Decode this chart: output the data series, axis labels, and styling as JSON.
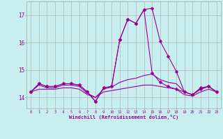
{
  "xlabel": "Windchill (Refroidissement éolien,°C)",
  "background_color": "#c8eef0",
  "grid_color": "#aaaaaa",
  "line_color": "#990099",
  "x": [
    0,
    1,
    2,
    3,
    4,
    5,
    6,
    7,
    8,
    9,
    10,
    11,
    12,
    13,
    14,
    15,
    16,
    17,
    18,
    19,
    20,
    21,
    22,
    23
  ],
  "series1": [
    14.2,
    14.5,
    14.4,
    14.4,
    14.5,
    14.5,
    14.45,
    14.2,
    13.85,
    14.35,
    14.4,
    16.1,
    16.85,
    16.7,
    17.2,
    17.25,
    16.05,
    15.5,
    14.95,
    14.2,
    14.1,
    14.35,
    14.4,
    14.2
  ],
  "series2": [
    14.2,
    14.5,
    14.4,
    14.4,
    14.5,
    14.5,
    14.45,
    14.2,
    13.85,
    14.35,
    14.4,
    16.1,
    16.85,
    16.7,
    17.2,
    14.9,
    14.55,
    14.4,
    14.3,
    14.2,
    14.1,
    14.3,
    14.4,
    14.2
  ],
  "series3": [
    14.2,
    14.45,
    14.35,
    14.35,
    14.45,
    14.45,
    14.4,
    14.15,
    14.0,
    14.3,
    14.38,
    14.55,
    14.65,
    14.7,
    14.8,
    14.85,
    14.65,
    14.55,
    14.5,
    14.2,
    14.1,
    14.3,
    14.4,
    14.2
  ],
  "series4": [
    14.2,
    14.3,
    14.3,
    14.3,
    14.35,
    14.35,
    14.3,
    14.1,
    14.0,
    14.2,
    14.25,
    14.3,
    14.35,
    14.4,
    14.45,
    14.45,
    14.4,
    14.35,
    14.3,
    14.1,
    14.05,
    14.2,
    14.3,
    14.2
  ],
  "ylim": [
    13.6,
    17.5
  ],
  "xlim": [
    -0.5,
    23.5
  ],
  "yticks": [
    14,
    15,
    16,
    17
  ],
  "xticks": [
    0,
    1,
    2,
    3,
    4,
    5,
    6,
    7,
    8,
    9,
    10,
    11,
    12,
    13,
    14,
    15,
    16,
    17,
    18,
    19,
    20,
    21,
    22,
    23
  ],
  "marker_size": 2.5,
  "linewidth": 0.8
}
